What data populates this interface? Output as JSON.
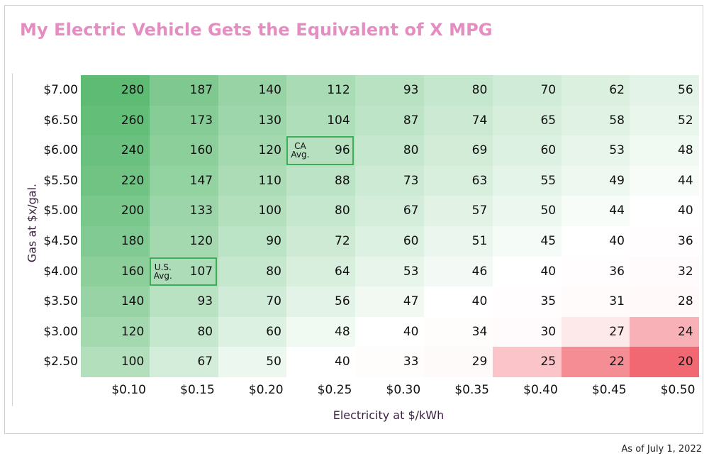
{
  "chart_data": {
    "type": "heatmap",
    "title": "My Electric Vehicle Gets the Equivalent of X MPG",
    "xlabel": "Electricity at $/kWh",
    "ylabel": "Gas at $x/gal.",
    "x": [
      "$0.10",
      "$0.15",
      "$0.20",
      "$0.25",
      "$0.30",
      "$0.35",
      "$0.40",
      "$0.45",
      "$0.50"
    ],
    "y": [
      "$7.00",
      "$6.50",
      "$6.00",
      "$5.50",
      "$5.00",
      "$4.50",
      "$4.00",
      "$3.50",
      "$3.00",
      "$2.50"
    ],
    "values": [
      [
        280,
        187,
        140,
        112,
        93,
        80,
        70,
        62,
        56
      ],
      [
        260,
        173,
        130,
        104,
        87,
        74,
        65,
        58,
        52
      ],
      [
        240,
        160,
        120,
        96,
        80,
        69,
        60,
        53,
        48
      ],
      [
        220,
        147,
        110,
        88,
        73,
        63,
        55,
        49,
        44
      ],
      [
        200,
        133,
        100,
        80,
        67,
        57,
        50,
        44,
        40
      ],
      [
        180,
        120,
        90,
        72,
        60,
        51,
        45,
        40,
        36
      ],
      [
        160,
        107,
        80,
        64,
        53,
        46,
        40,
        36,
        32
      ],
      [
        140,
        93,
        70,
        56,
        47,
        40,
        35,
        31,
        28
      ],
      [
        120,
        80,
        60,
        48,
        40,
        34,
        30,
        27,
        24
      ],
      [
        100,
        67,
        50,
        40,
        33,
        29,
        25,
        22,
        20
      ]
    ],
    "highlights": [
      {
        "label": "CA Avg.",
        "lines": [
          "CA",
          "Avg."
        ],
        "row": 2,
        "col": 3
      },
      {
        "label": "U.S. Avg.",
        "lines": [
          "U.S.",
          "Avg."
        ],
        "row": 6,
        "col": 1
      }
    ],
    "colors": {
      "high": "#5dbb73",
      "mid": "#ffffff",
      "low": "#f26872",
      "highlight_border": "#3fae58",
      "title": "#e58cc0"
    }
  },
  "footnote": "As of July 1, 2022"
}
